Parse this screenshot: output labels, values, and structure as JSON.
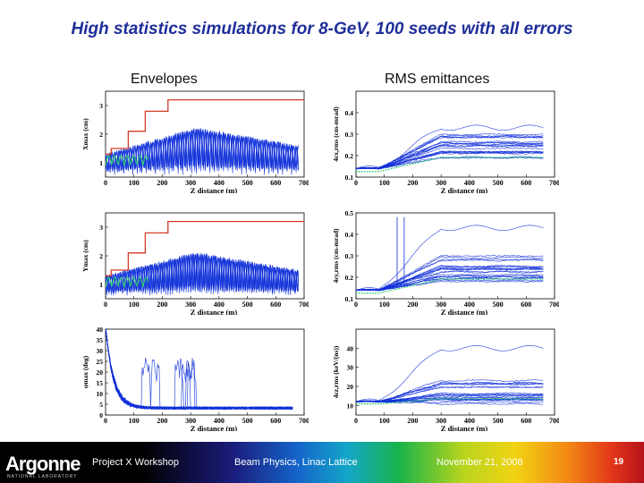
{
  "slide": {
    "title": "High statistics simulations for 8-GeV, 100 seeds with all errors",
    "left_heading": "Envelopes",
    "right_heading": "RMS emittances"
  },
  "footer": {
    "logo": "Argonne",
    "logo_sub": "NATIONAL LABORATORY",
    "workshop": "Project X Workshop",
    "topic": "Beam Physics, Linac Lattice",
    "date": "November 21, 2008",
    "page": "19"
  },
  "colors": {
    "title": "#1f2e9a",
    "trace": "#1030d8",
    "aperture": "#d43a2a",
    "mean": "#2ecc71"
  },
  "chart_data": [
    {
      "type": "line",
      "id": "xmax",
      "xlabel": "Z distance (m)",
      "ylabel": "Xmax (cm)",
      "xlim": [
        0,
        700
      ],
      "ylim": [
        0.5,
        3.5
      ],
      "xticks": [
        0,
        100,
        200,
        300,
        400,
        500,
        600,
        700
      ],
      "yticks": [
        1,
        2,
        3
      ],
      "aperture": [
        [
          0,
          1.3
        ],
        [
          20,
          1.3
        ],
        [
          20,
          1.5
        ],
        [
          80,
          1.5
        ],
        [
          80,
          2.1
        ],
        [
          140,
          2.1
        ],
        [
          140,
          2.8
        ],
        [
          220,
          2.8
        ],
        [
          220,
          3.2
        ],
        [
          700,
          3.2
        ]
      ],
      "envelope": {
        "base": 1.3,
        "amp_start": 0.6,
        "amp_end": 1.5,
        "period": 16,
        "decay_end": 1.2
      }
    },
    {
      "type": "line",
      "id": "emit_x",
      "xlabel": "Z distance (m)",
      "ylabel": "4εx,rms (cm-mrad)",
      "xlim": [
        0,
        700
      ],
      "ylim": [
        0.1,
        0.5
      ],
      "xticks": [
        0,
        100,
        200,
        300,
        400,
        500,
        600,
        700
      ],
      "yticks": [
        0.1,
        0.2,
        0.3,
        0.4
      ],
      "emittance": {
        "start": 0.14,
        "plateau": 0.24,
        "spread": 0.06,
        "max_outlier": 0.33
      }
    },
    {
      "type": "line",
      "id": "ymax",
      "xlabel": "Z distance (m)",
      "ylabel": "Ymax (cm)",
      "xlim": [
        0,
        700
      ],
      "ylim": [
        0.5,
        3.5
      ],
      "xticks": [
        0,
        100,
        200,
        300,
        400,
        500,
        600,
        700
      ],
      "yticks": [
        1,
        2,
        3
      ],
      "aperture": [
        [
          0,
          1.3
        ],
        [
          20,
          1.3
        ],
        [
          20,
          1.5
        ],
        [
          80,
          1.5
        ],
        [
          80,
          2.1
        ],
        [
          140,
          2.1
        ],
        [
          140,
          2.8
        ],
        [
          220,
          2.8
        ],
        [
          220,
          3.2
        ],
        [
          700,
          3.2
        ]
      ],
      "envelope": {
        "base": 1.3,
        "amp_start": 0.6,
        "amp_end": 1.4,
        "period": 16,
        "decay_end": 1.2
      }
    },
    {
      "type": "line",
      "id": "emit_y",
      "xlabel": "Z distance (m)",
      "ylabel": "4εy,rms (cm-mrad)",
      "xlim": [
        0,
        700
      ],
      "ylim": [
        0.1,
        0.5
      ],
      "xticks": [
        0,
        100,
        200,
        300,
        400,
        500,
        600,
        700
      ],
      "yticks": [
        0.1,
        0.2,
        0.3,
        0.4,
        0.5
      ],
      "emittance": {
        "start": 0.14,
        "plateau": 0.24,
        "spread": 0.06,
        "max_outlier": 0.43,
        "spikes": [
          145,
          170
        ]
      }
    },
    {
      "type": "line",
      "id": "phimax",
      "xlabel": "Z distance (m)",
      "ylabel": "φmax (deg)",
      "xlim": [
        0,
        700
      ],
      "ylim": [
        0,
        40
      ],
      "xticks": [
        0,
        100,
        200,
        300,
        400,
        500,
        600,
        700
      ],
      "yticks": [
        0,
        5,
        10,
        15,
        20,
        25,
        30,
        35,
        40
      ],
      "phase": {
        "start": 38,
        "tail": 3
      }
    },
    {
      "type": "line",
      "id": "emit_z",
      "xlabel": "Z distance (m)",
      "ylabel": "4εz,rms (keV/(ns))",
      "xlim": [
        0,
        700
      ],
      "ylim": [
        5,
        50
      ],
      "xticks": [
        0,
        100,
        200,
        300,
        400,
        500,
        600,
        700
      ],
      "yticks": [
        10,
        20,
        30,
        40
      ],
      "emittance": {
        "start": 12,
        "plateau": 17,
        "spread": 7,
        "max_outlier": 40
      }
    }
  ]
}
